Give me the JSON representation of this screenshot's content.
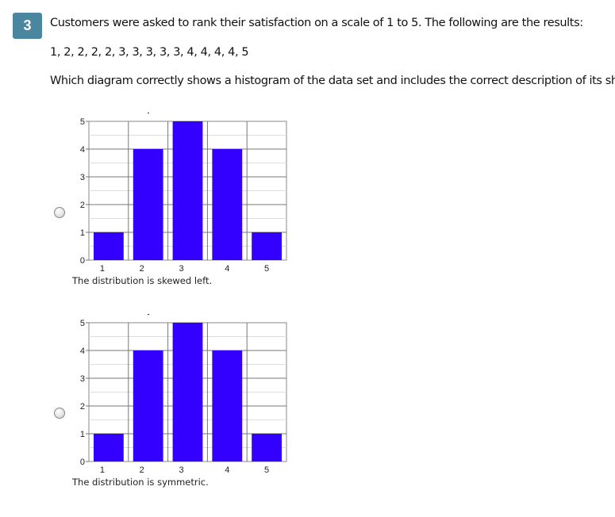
{
  "question": {
    "number": "3",
    "prompt": "Customers were asked to rank their satisfaction on a scale of 1 to 5. The following are the results:",
    "data_set": "1, 2, 2, 2, 2, 3, 3, 3, 3, 3, 4, 4, 4, 4, 5",
    "ask": "Which diagram correctly shows a histogram of the data set and includes the correct description of its shape?"
  },
  "options": [
    {
      "caption": "The distribution is skewed left.",
      "selected": false
    },
    {
      "caption": "The distribution is symmetric.",
      "selected": false
    }
  ],
  "chart_data": [
    {
      "type": "bar",
      "categories": [
        "1",
        "2",
        "3",
        "4",
        "5"
      ],
      "values": [
        1,
        4,
        5,
        4,
        1
      ],
      "ylim": [
        0,
        5
      ],
      "yticks": [
        "0",
        "1",
        "2",
        "3",
        "4",
        "5"
      ],
      "grid": true,
      "bar_color": "#3300ff"
    },
    {
      "type": "bar",
      "categories": [
        "1",
        "2",
        "3",
        "4",
        "5"
      ],
      "values": [
        1,
        4,
        5,
        4,
        1
      ],
      "ylim": [
        0,
        5
      ],
      "yticks": [
        "0",
        "1",
        "2",
        "3",
        "4",
        "5"
      ],
      "grid": true,
      "bar_color": "#3300ff"
    }
  ]
}
